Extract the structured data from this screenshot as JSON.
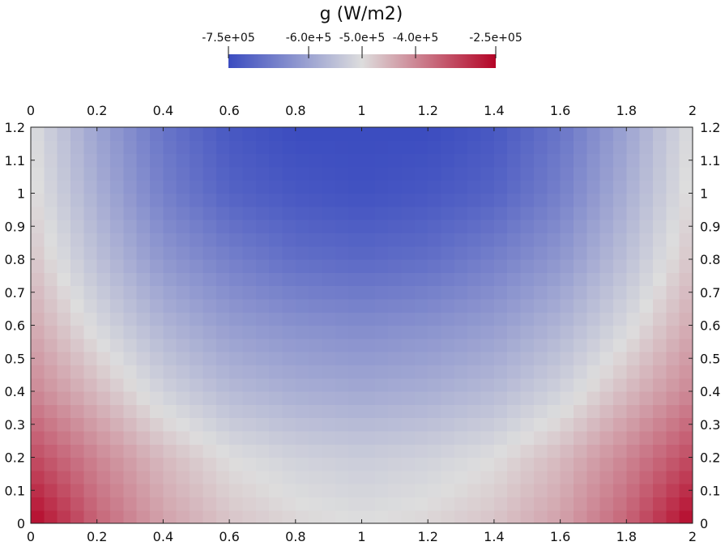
{
  "chart_data": {
    "type": "heatmap",
    "title": "g (W/m2)",
    "colorbar": {
      "min": -750000,
      "max": -250000,
      "ticks": [
        {
          "value": -750000,
          "label": "-7.5e+05"
        },
        {
          "value": -600000,
          "label": "-6.0e+5"
        },
        {
          "value": -500000,
          "label": "-5.0e+5"
        },
        {
          "value": -400000,
          "label": "-4.0e+5"
        },
        {
          "value": -250000,
          "label": "-2.5e+05"
        }
      ],
      "colormap": [
        "#3b4cc0",
        "#dddddd",
        "#b40426"
      ]
    },
    "xlim": [
      0,
      2
    ],
    "ylim": [
      0,
      1.2
    ],
    "x_ticks": [
      {
        "value": 0,
        "label": "0"
      },
      {
        "value": 0.2,
        "label": "0.2"
      },
      {
        "value": 0.4,
        "label": "0.4"
      },
      {
        "value": 0.6,
        "label": "0.6"
      },
      {
        "value": 0.8,
        "label": "0.8"
      },
      {
        "value": 1,
        "label": "1"
      },
      {
        "value": 1.2,
        "label": "1.2"
      },
      {
        "value": 1.4,
        "label": "1.4"
      },
      {
        "value": 1.6,
        "label": "1.6"
      },
      {
        "value": 1.8,
        "label": "1.8"
      },
      {
        "value": 2,
        "label": "2"
      }
    ],
    "y_ticks": [
      {
        "value": 0,
        "label": "0"
      },
      {
        "value": 0.1,
        "label": "0.1"
      },
      {
        "value": 0.2,
        "label": "0.2"
      },
      {
        "value": 0.3,
        "label": "0.3"
      },
      {
        "value": 0.4,
        "label": "0.4"
      },
      {
        "value": 0.5,
        "label": "0.5"
      },
      {
        "value": 0.6,
        "label": "0.6"
      },
      {
        "value": 0.7,
        "label": "0.7"
      },
      {
        "value": 0.8,
        "label": "0.8"
      },
      {
        "value": 0.9,
        "label": "0.9"
      },
      {
        "value": 1,
        "label": "1"
      },
      {
        "value": 1.1,
        "label": "1.1"
      },
      {
        "value": 1.2,
        "label": "1.2"
      }
    ],
    "x": [
      0,
      0.2,
      0.4,
      0.6,
      0.8,
      1.0,
      1.2,
      1.4,
      1.6,
      1.8,
      2.0
    ],
    "y": [
      0,
      0.2,
      0.4,
      0.6,
      0.8,
      1.0,
      1.2
    ],
    "z": [
      [
        -250000,
        -360000,
        -430000,
        -470000,
        -490000,
        -500000,
        -490000,
        -470000,
        -430000,
        -360000,
        -250000
      ],
      [
        -330000,
        -400000,
        -460000,
        -500000,
        -520000,
        -530000,
        -520000,
        -500000,
        -460000,
        -400000,
        -330000
      ],
      [
        -400000,
        -460000,
        -520000,
        -560000,
        -580000,
        -590000,
        -580000,
        -560000,
        -520000,
        -460000,
        -400000
      ],
      [
        -440000,
        -510000,
        -570000,
        -610000,
        -630000,
        -640000,
        -630000,
        -610000,
        -570000,
        -510000,
        -440000
      ],
      [
        -470000,
        -550000,
        -620000,
        -660000,
        -690000,
        -700000,
        -690000,
        -660000,
        -620000,
        -550000,
        -470000
      ],
      [
        -490000,
        -580000,
        -660000,
        -710000,
        -730000,
        -740000,
        -730000,
        -710000,
        -660000,
        -580000,
        -490000
      ],
      [
        -500000,
        -600000,
        -680000,
        -730000,
        -750000,
        -750000,
        -750000,
        -730000,
        -680000,
        -600000,
        -500000
      ]
    ]
  }
}
